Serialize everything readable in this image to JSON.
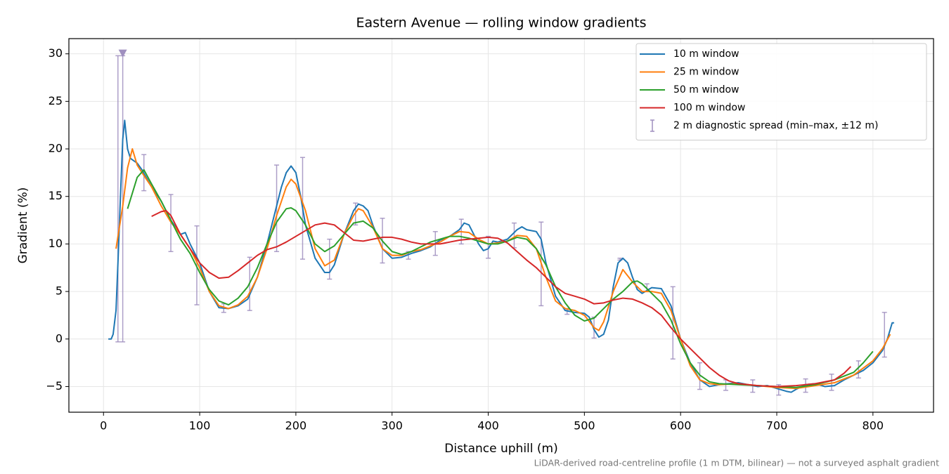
{
  "chart_data": {
    "type": "line",
    "title": "Eastern Avenue — rolling window gradients",
    "x_label": "Distance uphill (m)",
    "y_label": "Gradient (%)",
    "annotation": "LiDAR-derived road-centreline profile (1 m DTM, bilinear) — not a surveyed asphalt gradient",
    "xlim": [
      -36,
      863
    ],
    "ylim": [
      -7.7,
      31.6
    ],
    "xticks": [
      0,
      100,
      200,
      300,
      400,
      500,
      600,
      700,
      800
    ],
    "yticks": [
      {
        "value": -5,
        "label": "−5"
      },
      0,
      5,
      10,
      15,
      20,
      25,
      30
    ],
    "grid": true,
    "legend": "upper right",
    "series": [
      {
        "name": "10 m window",
        "color": "#1f77b4",
        "x": [
          5,
          8,
          10,
          13,
          15,
          18,
          20,
          22,
          25,
          28,
          35,
          40,
          50,
          60,
          70,
          80,
          85,
          90,
          100,
          110,
          120,
          130,
          140,
          150,
          160,
          170,
          180,
          185,
          190,
          195,
          200,
          205,
          210,
          220,
          230,
          235,
          240,
          250,
          260,
          265,
          270,
          275,
          280,
          290,
          300,
          310,
          320,
          330,
          340,
          350,
          360,
          370,
          375,
          380,
          385,
          390,
          395,
          400,
          405,
          410,
          420,
          430,
          435,
          440,
          450,
          455,
          460,
          470,
          480,
          490,
          500,
          505,
          510,
          515,
          520,
          525,
          530,
          535,
          540,
          545,
          550,
          555,
          560,
          570,
          580,
          590,
          600,
          610,
          620,
          630,
          640,
          650,
          660,
          670,
          680,
          690,
          700,
          710,
          715,
          720,
          730,
          740,
          750,
          760,
          770,
          780,
          790,
          800,
          810,
          815,
          820,
          822
        ],
        "values": [
          0,
          0,
          0.5,
          3,
          8,
          16,
          21,
          23,
          20,
          19,
          18.5,
          17.8,
          16,
          14.5,
          12.5,
          11,
          11.2,
          10,
          8,
          5,
          3.3,
          3.2,
          3.5,
          4.2,
          6.5,
          10,
          14,
          16,
          17.5,
          18.2,
          17.5,
          15,
          12,
          8.5,
          7,
          7,
          7.8,
          11,
          13.5,
          14.2,
          14,
          13.5,
          12,
          9.5,
          8.5,
          8.6,
          9,
          9.3,
          9.7,
          10.4,
          10.8,
          11.5,
          12.2,
          12,
          11,
          10,
          9.3,
          9.5,
          10.3,
          10.2,
          10.5,
          11.5,
          11.8,
          11.5,
          11.3,
          10.5,
          8,
          4.5,
          3,
          2.8,
          2.7,
          2.3,
          1,
          0.2,
          0.5,
          2,
          5.5,
          8,
          8.5,
          8,
          6.5,
          5.2,
          4.8,
          5.4,
          5.3,
          3.5,
          0,
          -2.5,
          -4.3,
          -5,
          -4.8,
          -4.7,
          -4.6,
          -4.8,
          -5,
          -4.9,
          -5.2,
          -5.5,
          -5.6,
          -5.3,
          -4.8,
          -4.7,
          -5,
          -4.9,
          -4.3,
          -3.8,
          -3.3,
          -2.5,
          -1.2,
          0,
          1.7,
          1.7
        ]
      },
      {
        "name": "25 m window",
        "color": "#ff7f0e",
        "x": [
          13,
          20,
          25,
          30,
          35,
          40,
          50,
          60,
          70,
          80,
          90,
          100,
          110,
          120,
          130,
          140,
          150,
          160,
          170,
          180,
          190,
          195,
          200,
          210,
          220,
          230,
          240,
          250,
          260,
          265,
          270,
          280,
          290,
          300,
          310,
          320,
          330,
          340,
          350,
          360,
          370,
          380,
          390,
          400,
          410,
          420,
          430,
          440,
          450,
          460,
          470,
          480,
          490,
          500,
          510,
          515,
          520,
          530,
          540,
          550,
          560,
          570,
          580,
          590,
          600,
          610,
          620,
          630,
          640,
          660,
          680,
          700,
          720,
          740,
          760,
          780,
          800,
          810,
          818
        ],
        "values": [
          9.5,
          14,
          18,
          20,
          18.3,
          17.5,
          16,
          14,
          12.3,
          11,
          9.5,
          7.5,
          5,
          3.5,
          3.2,
          3.6,
          4.5,
          6.5,
          9.5,
          13,
          16,
          16.8,
          16.3,
          13.5,
          9.5,
          7.7,
          8.3,
          11,
          13,
          13.7,
          13.5,
          11.8,
          9.5,
          8.8,
          8.8,
          9.2,
          9.4,
          9.8,
          10.2,
          10.8,
          11.3,
          11.2,
          10.5,
          10,
          10.1,
          10.3,
          10.9,
          10.8,
          9.5,
          6.5,
          4,
          3.2,
          3,
          2.5,
          1.2,
          0.9,
          1.8,
          5,
          7.3,
          6,
          5,
          5,
          4.8,
          3,
          0,
          -2.8,
          -4.3,
          -4.7,
          -4.8,
          -4.7,
          -4.9,
          -5.1,
          -5.2,
          -4.9,
          -4.6,
          -3.8,
          -2.3,
          -1,
          0.5
        ]
      },
      {
        "name": "50 m window",
        "color": "#2ca02c",
        "x": [
          25,
          35,
          42,
          50,
          60,
          70,
          80,
          90,
          100,
          110,
          120,
          130,
          140,
          150,
          160,
          170,
          180,
          190,
          195,
          200,
          210,
          220,
          230,
          240,
          250,
          260,
          270,
          280,
          290,
          300,
          310,
          320,
          330,
          340,
          350,
          360,
          370,
          380,
          390,
          400,
          410,
          420,
          430,
          440,
          450,
          460,
          470,
          480,
          490,
          500,
          510,
          520,
          530,
          540,
          550,
          555,
          560,
          570,
          580,
          590,
          600,
          610,
          620,
          630,
          640,
          660,
          680,
          700,
          720,
          740,
          760,
          780,
          790,
          800
        ],
        "values": [
          13.7,
          17,
          17.8,
          16.3,
          14.5,
          12.5,
          10.5,
          9,
          7,
          5.2,
          4,
          3.6,
          4.3,
          5.5,
          7.5,
          10,
          12.3,
          13.7,
          13.8,
          13.5,
          12,
          10,
          9.2,
          9.8,
          11,
          12.2,
          12.4,
          11.7,
          10.3,
          9.2,
          8.9,
          9.2,
          9.7,
          10.2,
          10.5,
          10.8,
          10.8,
          10.6,
          10.3,
          10,
          10,
          10.3,
          10.7,
          10.5,
          9.5,
          7.8,
          5.5,
          3.8,
          2.5,
          1.9,
          2.2,
          3.2,
          4.2,
          5,
          6,
          6.1,
          5.8,
          4.8,
          3.8,
          2,
          -0.5,
          -2.5,
          -3.8,
          -4.5,
          -4.7,
          -4.8,
          -4.9,
          -5,
          -5.1,
          -4.8,
          -4.3,
          -3.5,
          -2.5,
          -1.3
        ]
      },
      {
        "name": "100 m window",
        "color": "#d62728",
        "x": [
          50,
          60,
          65,
          70,
          80,
          90,
          100,
          110,
          120,
          130,
          140,
          150,
          160,
          170,
          180,
          190,
          200,
          210,
          220,
          230,
          240,
          250,
          260,
          270,
          280,
          290,
          300,
          310,
          320,
          330,
          340,
          350,
          360,
          370,
          380,
          390,
          400,
          410,
          420,
          430,
          440,
          450,
          460,
          470,
          480,
          490,
          500,
          510,
          520,
          530,
          540,
          550,
          560,
          570,
          580,
          590,
          600,
          610,
          620,
          630,
          640,
          650,
          660,
          680,
          700,
          720,
          740,
          760,
          770,
          777
        ],
        "values": [
          12.9,
          13.4,
          13.5,
          13,
          11,
          9.5,
          8,
          7,
          6.4,
          6.5,
          7.2,
          8,
          8.8,
          9.4,
          9.7,
          10.2,
          10.8,
          11.4,
          12,
          12.2,
          12,
          11.2,
          10.4,
          10.3,
          10.5,
          10.7,
          10.7,
          10.5,
          10.2,
          10,
          10,
          10,
          10.2,
          10.4,
          10.5,
          10.6,
          10.7,
          10.6,
          10.1,
          9.2,
          8.3,
          7.5,
          6.5,
          5.5,
          4.8,
          4.5,
          4.2,
          3.7,
          3.8,
          4.1,
          4.3,
          4.2,
          3.8,
          3.3,
          2.5,
          1.2,
          0,
          -1,
          -2,
          -3,
          -3.8,
          -4.4,
          -4.7,
          -4.9,
          -5,
          -4.9,
          -4.7,
          -4.3,
          -3.6,
          -2.9
        ]
      },
      {
        "name": "2 m diagnostic spread (min–max, ±12 m)",
        "color": "#9f8fbf",
        "kind": "errorbar",
        "x": [
          15,
          20,
          42,
          70,
          97,
          125,
          152,
          180,
          207,
          235,
          262,
          290,
          317,
          345,
          372,
          400,
          427,
          455,
          482,
          510,
          537,
          565,
          592,
          620,
          647,
          675,
          702,
          730,
          757,
          785,
          812
        ],
        "low": [
          -0.3,
          -0.3,
          15.6,
          9.2,
          3.6,
          2.8,
          3.0,
          9.2,
          8.4,
          6.3,
          12.0,
          8.0,
          8.4,
          8.8,
          10.0,
          8.5,
          9.6,
          3.5,
          2.6,
          0.1,
          8.3,
          5.0,
          -2.1,
          -5.3,
          -5.4,
          -5.6,
          -5.9,
          -5.6,
          -5.4,
          -4.1,
          -1.9
        ],
        "high": [
          29.8,
          29.8,
          19.4,
          15.2,
          11.9,
          3.7,
          8.6,
          18.3,
          19.1,
          10.5,
          14.3,
          12.7,
          9.2,
          11.3,
          12.6,
          10.8,
          12.2,
          12.3,
          3.2,
          2.3,
          8.5,
          5.8,
          5.5,
          -2.5,
          -4.3,
          -4.3,
          -4.8,
          -4.2,
          -3.7,
          -2.3,
          2.8
        ]
      }
    ],
    "clip_markers": [
      {
        "x": 20,
        "y": 30
      }
    ]
  }
}
